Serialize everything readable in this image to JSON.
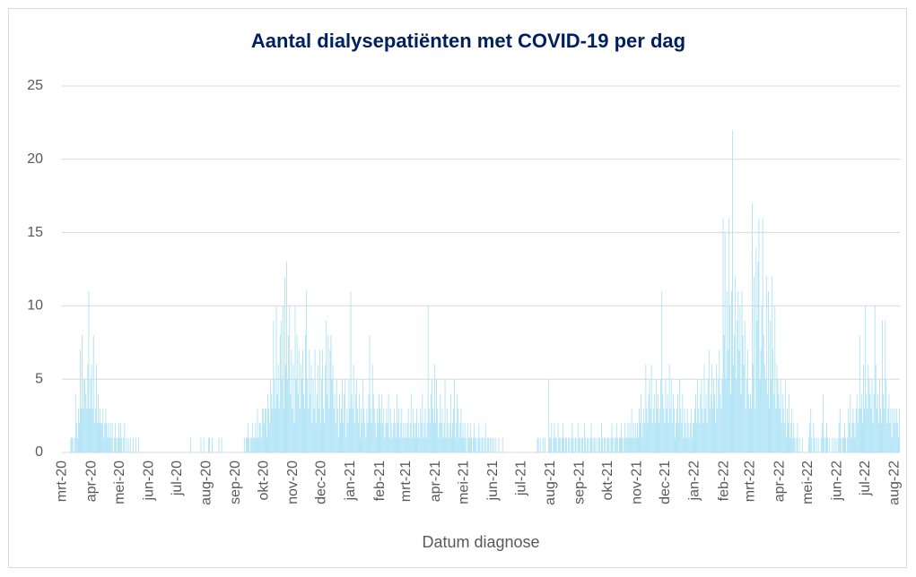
{
  "chart_data": {
    "type": "bar",
    "title": "Aantal dialysepatiënten met COVID-19 per dag",
    "x_label": "Datum diagnose",
    "categories": [
      "mrt-20",
      "apr-20",
      "mei-20",
      "jun-20",
      "jul-20",
      "aug-20",
      "sep-20",
      "okt-20",
      "nov-20",
      "dec-20",
      "jan-21",
      "feb-21",
      "mrt-21",
      "apr-21",
      "mei-21",
      "jun-21",
      "jul-21",
      "aug-21",
      "sep-21",
      "okt-21",
      "nov-21",
      "dec-21",
      "jan-22",
      "feb-22",
      "mrt-22",
      "apr-22",
      "mei-22",
      "jun-22",
      "jul-22",
      "aug-22"
    ],
    "values": [
      [
        0,
        0,
        0,
        0,
        0,
        0,
        0,
        0,
        0,
        1,
        1,
        1,
        0,
        1,
        4,
        2,
        1,
        3,
        2,
        7,
        3,
        8,
        3,
        5,
        5,
        4,
        3,
        6,
        11,
        3,
        5
      ],
      [
        6,
        3,
        8,
        2,
        3,
        6,
        2,
        4,
        2,
        3,
        2,
        2,
        3,
        1,
        2,
        3,
        2,
        1,
        2,
        1,
        2,
        1,
        2,
        0,
        1,
        2,
        1,
        0,
        1,
        2
      ],
      [
        1,
        2,
        1,
        0,
        1,
        2,
        0,
        1,
        0,
        1,
        0,
        1,
        0,
        0,
        1,
        0,
        0,
        1,
        0,
        0,
        1,
        0,
        0,
        0,
        0,
        0,
        0,
        0,
        0,
        0,
        0
      ],
      [
        0,
        0,
        0,
        0,
        0,
        0,
        0,
        0,
        0,
        0,
        0,
        0,
        0,
        0,
        0,
        0,
        0,
        0,
        0,
        0,
        0,
        0,
        0,
        0,
        0,
        0,
        0,
        0,
        0,
        0
      ],
      [
        0,
        0,
        0,
        0,
        0,
        0,
        0,
        0,
        0,
        0,
        0,
        0,
        0,
        0,
        1,
        0,
        0,
        0,
        0,
        0,
        0,
        0,
        0,
        0,
        0,
        1,
        0,
        0,
        1,
        0,
        0
      ],
      [
        0,
        0,
        1,
        1,
        0,
        0,
        1,
        0,
        0,
        0,
        0,
        0,
        0,
        1,
        0,
        0,
        1,
        0,
        0,
        0,
        0,
        0,
        0,
        0,
        0,
        0,
        0,
        0,
        0,
        0,
        0
      ],
      [
        0,
        0,
        0,
        0,
        0,
        0,
        0,
        0,
        0,
        1,
        0,
        1,
        1,
        2,
        1,
        0,
        1,
        1,
        2,
        1,
        1,
        2,
        1,
        3,
        1,
        2,
        2,
        1,
        3,
        3
      ],
      [
        2,
        3,
        3,
        1,
        4,
        3,
        2,
        5,
        4,
        3,
        9,
        5,
        3,
        10,
        4,
        6,
        3,
        8,
        9,
        5,
        10,
        3,
        12,
        6,
        13,
        5,
        8,
        10,
        4,
        7,
        3
      ],
      [
        6,
        2,
        10,
        5,
        8,
        4,
        7,
        3,
        6,
        5,
        7,
        4,
        3,
        8,
        11,
        5,
        3,
        7,
        4,
        6,
        2,
        5,
        3,
        7,
        2,
        4,
        6,
        3,
        7,
        2
      ],
      [
        5,
        7,
        3,
        2,
        6,
        9,
        4,
        8,
        3,
        7,
        8,
        5,
        6,
        3,
        4,
        2,
        5,
        3,
        1,
        4,
        2,
        3,
        5,
        2,
        4,
        5,
        1,
        3,
        2,
        5,
        3
      ],
      [
        11,
        4,
        3,
        6,
        2,
        4,
        5,
        3,
        2,
        4,
        1,
        3,
        2,
        5,
        3,
        2,
        1,
        3,
        2,
        4,
        8,
        3,
        2,
        6,
        4,
        3,
        2,
        1,
        3,
        2,
        4
      ],
      [
        3,
        2,
        4,
        2,
        3,
        1,
        2,
        3,
        2,
        4,
        1,
        3,
        2,
        1,
        2,
        3,
        2,
        1,
        4,
        2,
        3,
        1,
        2,
        3,
        1,
        2,
        1,
        2
      ],
      [
        1,
        2,
        3,
        1,
        2,
        4,
        1,
        3,
        2,
        1,
        2,
        3,
        1,
        2,
        1,
        3,
        2,
        4,
        1,
        2,
        3,
        1,
        2,
        10,
        3,
        2,
        4,
        5,
        3,
        2,
        6
      ],
      [
        2,
        5,
        3,
        1,
        2,
        4,
        2,
        3,
        1,
        2,
        5,
        1,
        3,
        2,
        1,
        2,
        4,
        1,
        2,
        3,
        5,
        1,
        2,
        4,
        3,
        1,
        2,
        3,
        1,
        2
      ],
      [
        1,
        2,
        1,
        0,
        2,
        1,
        1,
        2,
        1,
        0,
        1,
        2,
        1,
        1,
        0,
        1,
        2,
        1,
        0,
        1,
        1,
        0,
        1,
        2,
        0,
        1,
        1,
        0,
        1,
        0,
        1
      ],
      [
        0,
        1,
        0,
        1,
        0,
        0,
        1,
        0,
        0,
        0,
        1,
        0,
        0,
        0,
        0,
        0,
        0,
        0,
        0,
        0,
        0,
        0,
        0,
        0,
        0,
        0,
        0,
        0,
        0,
        0
      ],
      [
        0,
        0,
        0,
        0,
        0,
        0,
        0,
        0,
        0,
        0,
        0,
        0,
        0,
        0,
        0,
        0,
        0,
        1,
        1,
        0,
        1,
        0,
        0,
        1,
        0,
        1,
        0,
        0,
        0,
        5,
        1
      ],
      [
        1,
        2,
        0,
        1,
        2,
        1,
        1,
        0,
        2,
        1,
        1,
        0,
        1,
        2,
        1,
        0,
        1,
        1,
        0,
        1,
        1,
        0,
        1,
        2,
        1,
        0,
        1,
        1,
        0,
        2,
        1
      ],
      [
        1,
        0,
        1,
        1,
        0,
        2,
        1,
        0,
        1,
        1,
        0,
        1,
        2,
        1,
        0,
        1,
        1,
        0,
        1,
        0,
        1,
        1,
        0,
        2,
        1,
        0,
        1,
        1,
        0,
        1
      ],
      [
        1,
        1,
        0,
        1,
        2,
        1,
        0,
        1,
        1,
        2,
        1,
        0,
        1,
        1,
        2,
        1,
        0,
        1,
        2,
        1,
        1,
        2,
        1,
        2,
        1,
        3,
        1,
        2,
        1,
        2,
        1
      ],
      [
        2,
        1,
        3,
        2,
        4,
        1,
        2,
        3,
        2,
        6,
        3,
        2,
        4,
        5,
        3,
        6,
        2,
        3,
        4,
        2,
        5,
        3,
        4,
        2,
        3,
        5,
        11,
        4,
        3,
        2
      ],
      [
        5,
        3,
        4,
        2,
        6,
        3,
        5,
        2,
        4,
        3,
        1,
        2,
        3,
        4,
        2,
        5,
        3,
        2,
        4,
        1,
        3,
        2,
        1,
        3,
        2,
        1,
        2,
        3,
        1,
        2,
        2
      ],
      [
        3,
        4,
        2,
        5,
        3,
        2,
        4,
        5,
        3,
        2,
        6,
        3,
        4,
        2,
        5,
        7,
        3,
        4,
        6,
        3,
        5,
        4,
        2,
        6,
        3,
        5,
        7,
        4,
        3,
        5,
        16
      ],
      [
        8,
        15,
        5,
        11,
        7,
        16,
        10,
        4,
        11,
        22,
        6,
        8,
        12,
        5,
        9,
        11,
        7,
        10,
        4,
        11,
        8,
        6,
        9,
        3,
        5,
        7,
        4,
        3
      ],
      [
        4,
        3,
        17,
        6,
        12,
        3,
        14,
        9,
        13,
        16,
        5,
        7,
        10,
        16,
        8,
        6,
        5,
        12,
        4,
        11,
        3,
        9,
        5,
        12,
        7,
        4,
        10,
        3,
        6,
        5,
        4
      ],
      [
        3,
        5,
        2,
        4,
        3,
        2,
        5,
        1,
        3,
        2,
        4,
        1,
        2,
        3,
        1,
        2,
        1,
        0,
        1,
        2,
        0,
        1,
        0,
        0,
        1,
        0,
        0,
        0,
        0,
        0
      ],
      [
        0,
        1,
        2,
        3,
        1,
        0,
        2,
        1,
        0,
        1,
        0,
        1,
        0,
        0,
        1,
        2,
        4,
        1,
        0,
        1,
        2,
        1,
        0,
        1,
        0,
        0,
        1,
        0,
        1,
        0,
        1
      ],
      [
        0,
        1,
        2,
        3,
        1,
        0,
        1,
        1,
        2,
        1,
        0,
        1,
        3,
        2,
        4,
        1,
        2,
        3,
        2,
        1,
        3,
        4,
        2,
        3,
        8,
        3,
        4,
        2,
        6,
        3
      ],
      [
        10,
        4,
        3,
        6,
        5,
        4,
        3,
        5,
        2,
        4,
        10,
        6,
        3,
        4,
        2,
        5,
        3,
        2,
        9,
        4,
        3,
        9,
        5,
        2,
        3,
        4,
        2,
        3,
        1,
        3,
        2
      ],
      [
        3,
        2,
        3,
        2,
        1,
        3
      ]
    ],
    "color": "#a8e1f5",
    "ylim": [
      0,
      25
    ],
    "yticks": [
      0,
      5,
      10,
      15,
      20,
      25
    ],
    "grid": true
  }
}
